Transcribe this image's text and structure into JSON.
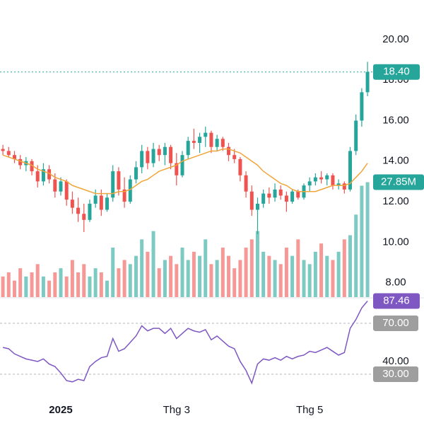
{
  "chart_data": {
    "type": "candlestick",
    "candles": [
      [
        14.6,
        14.8,
        14.3,
        14.5
      ],
      [
        14.5,
        14.7,
        14.2,
        14.3
      ],
      [
        14.3,
        14.5,
        13.9,
        14.1
      ],
      [
        14.1,
        14.3,
        13.6,
        13.8
      ],
      [
        13.8,
        14.2,
        13.5,
        14.0
      ],
      [
        14.0,
        14.1,
        13.3,
        13.5
      ],
      [
        13.5,
        13.8,
        12.7,
        13.0
      ],
      [
        13.0,
        13.9,
        12.8,
        13.6
      ],
      [
        13.6,
        13.8,
        12.9,
        13.1
      ],
      [
        13.1,
        13.4,
        12.2,
        12.5
      ],
      [
        12.5,
        13.2,
        12.3,
        13.0
      ],
      [
        13.0,
        13.1,
        11.8,
        12.1
      ],
      [
        12.1,
        12.5,
        11.4,
        11.7
      ],
      [
        11.7,
        12.2,
        11.0,
        11.4
      ],
      [
        11.4,
        11.9,
        10.5,
        11.1
      ],
      [
        11.1,
        12.1,
        11.0,
        11.9
      ],
      [
        11.9,
        12.6,
        11.7,
        12.3
      ],
      [
        12.3,
        12.6,
        11.3,
        11.6
      ],
      [
        11.6,
        12.4,
        11.5,
        12.2
      ],
      [
        12.2,
        13.8,
        12.0,
        13.5
      ],
      [
        13.5,
        13.7,
        12.3,
        12.6
      ],
      [
        12.6,
        13.2,
        11.7,
        12.0
      ],
      [
        12.0,
        13.3,
        11.9,
        13.1
      ],
      [
        13.1,
        14.0,
        12.9,
        13.7
      ],
      [
        13.7,
        14.8,
        13.4,
        14.5
      ],
      [
        14.5,
        14.7,
        13.6,
        13.9
      ],
      [
        13.9,
        14.9,
        13.7,
        14.6
      ],
      [
        14.6,
        14.8,
        14.0,
        14.3
      ],
      [
        14.3,
        14.9,
        13.8,
        14.7
      ],
      [
        14.7,
        14.8,
        13.6,
        13.9
      ],
      [
        13.9,
        14.4,
        12.8,
        13.3
      ],
      [
        13.3,
        14.5,
        13.2,
        14.3
      ],
      [
        14.3,
        15.2,
        14.1,
        15.0
      ],
      [
        15.0,
        15.6,
        14.6,
        14.9
      ],
      [
        14.9,
        15.4,
        14.4,
        15.2
      ],
      [
        15.2,
        15.7,
        14.7,
        15.4
      ],
      [
        15.4,
        15.5,
        14.4,
        14.7
      ],
      [
        14.7,
        15.3,
        14.5,
        15.1
      ],
      [
        15.1,
        15.2,
        14.5,
        14.7
      ],
      [
        14.7,
        14.9,
        14.0,
        14.3
      ],
      [
        14.3,
        14.6,
        13.9,
        14.1
      ],
      [
        14.1,
        14.2,
        13.0,
        13.3
      ],
      [
        13.3,
        13.5,
        12.2,
        12.5
      ],
      [
        12.5,
        12.8,
        11.3,
        11.6
      ],
      [
        11.6,
        12.2,
        10.4,
        11.9
      ],
      [
        11.9,
        12.6,
        11.7,
        12.4
      ],
      [
        12.4,
        12.7,
        11.9,
        12.2
      ],
      [
        12.2,
        12.9,
        12.0,
        12.6
      ],
      [
        12.6,
        12.8,
        12.1,
        12.3
      ],
      [
        12.3,
        12.5,
        11.5,
        12.0
      ],
      [
        12.0,
        12.6,
        11.9,
        12.5
      ],
      [
        12.5,
        12.6,
        12.1,
        12.2
      ],
      [
        12.2,
        12.9,
        12.1,
        12.8
      ],
      [
        12.8,
        13.2,
        12.5,
        13.0
      ],
      [
        13.0,
        13.4,
        12.8,
        13.2
      ],
      [
        13.2,
        13.5,
        12.9,
        13.1
      ],
      [
        13.1,
        13.4,
        12.8,
        13.3
      ],
      [
        13.3,
        13.4,
        12.6,
        12.8
      ],
      [
        12.8,
        13.1,
        12.6,
        12.9
      ],
      [
        12.9,
        13.0,
        12.4,
        12.6
      ],
      [
        12.6,
        14.7,
        12.5,
        14.5
      ],
      [
        14.5,
        16.3,
        14.3,
        16.0
      ],
      [
        16.0,
        17.6,
        15.7,
        17.4
      ],
      [
        17.4,
        18.9,
        17.2,
        18.4
      ]
    ],
    "ma": [
      14.3,
      14.2,
      14.1,
      14.0,
      13.9,
      13.8,
      13.6,
      13.5,
      13.4,
      13.2,
      13.1,
      13.0,
      12.8,
      12.7,
      12.6,
      12.5,
      12.4,
      12.4,
      12.4,
      12.4,
      12.5,
      12.5,
      12.6,
      12.8,
      13.0,
      13.1,
      13.3,
      13.5,
      13.6,
      13.7,
      13.8,
      14.0,
      14.1,
      14.2,
      14.3,
      14.4,
      14.5,
      14.5,
      14.6,
      14.6,
      14.5,
      14.4,
      14.2,
      14.0,
      13.8,
      13.5,
      13.3,
      13.1,
      12.9,
      12.8,
      12.6,
      12.5,
      12.5,
      12.5,
      12.5,
      12.6,
      12.7,
      12.8,
      12.8,
      12.8,
      12.9,
      13.2,
      13.5,
      13.9
    ],
    "volume": [
      5,
      6,
      4,
      7,
      5,
      6,
      8,
      5,
      4,
      6,
      7,
      5,
      9,
      6,
      8,
      5,
      7,
      6,
      4,
      12,
      7,
      9,
      8,
      10,
      14,
      11,
      16,
      7,
      9,
      10,
      8,
      12,
      9,
      11,
      10,
      14,
      8,
      9,
      12,
      10,
      7,
      9,
      12,
      14,
      16,
      11,
      10,
      9,
      8,
      12,
      10,
      14,
      9,
      8,
      11,
      13,
      10,
      9,
      11,
      14,
      15,
      20,
      27,
      27.85
    ],
    "volume_last_label": "27.85M",
    "rsi": [
      51,
      50,
      46,
      44,
      42,
      41,
      40,
      42,
      38,
      36,
      31,
      25,
      24,
      26,
      25,
      36,
      40,
      43,
      44,
      58,
      48,
      50,
      55,
      60,
      68,
      64,
      66,
      66,
      62,
      66,
      58,
      62,
      66,
      64,
      63,
      65,
      57,
      60,
      56,
      52,
      50,
      40,
      33,
      23,
      38,
      42,
      41,
      43,
      41,
      44,
      42,
      44,
      45,
      48,
      47,
      49,
      51,
      48,
      45,
      47,
      66,
      73,
      82,
      87.46
    ],
    "last_price": {
      "value": 18.4,
      "label": "18.40"
    },
    "xlim": [
      -0.5,
      63.6
    ],
    "xticks": [
      {
        "value": 10,
        "label": "2025"
      },
      {
        "value": 30,
        "label": "Thg 3"
      },
      {
        "value": 53,
        "label": "Thg 5"
      }
    ],
    "ylim": [
      7.29,
      21.95
    ],
    "yticks": [
      {
        "value": 8,
        "label": "8.00"
      },
      {
        "value": 10,
        "label": "10.00"
      },
      {
        "value": 12,
        "label": "12.00"
      },
      {
        "value": 14,
        "label": "14.00"
      },
      {
        "value": 16,
        "label": "16.00"
      },
      {
        "value": 18,
        "label": "18.00"
      },
      {
        "value": 20,
        "label": "20.00"
      }
    ],
    "vlim": [
      0,
      72
    ],
    "rsi_ylim": [
      10,
      89.4
    ],
    "rsi_yticks": [
      {
        "value": 30,
        "label": "30.00"
      },
      {
        "value": 40,
        "label": "40.00"
      },
      {
        "value": 70,
        "label": "70.00"
      }
    ],
    "up_color": "#26a69a",
    "down_color": "#ef5350",
    "ma_color": "#f0a63a",
    "rsi_color": "#7e57c2",
    "band_color": "#9e9e9e"
  }
}
